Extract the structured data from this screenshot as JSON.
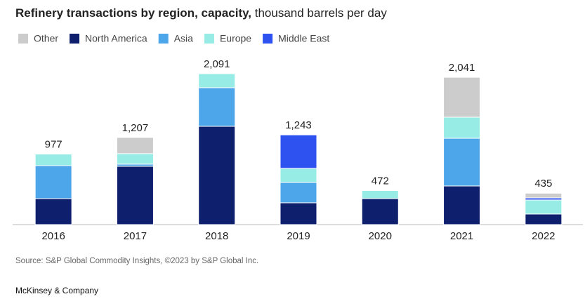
{
  "chart_data": {
    "type": "stacked_bar",
    "title": "Refinery transactions by region, capacity,",
    "subtitle": "thousand barrels per day",
    "categories": [
      "2016",
      "2017",
      "2018",
      "2019",
      "2020",
      "2021",
      "2022"
    ],
    "series": [
      {
        "name": "Other",
        "color": "#cccccc",
        "values": [
          null,
          223,
          null,
          null,
          null,
          553,
          65
        ]
      },
      {
        "name": "North America",
        "color": "#0e1f6e",
        "values": [
          360,
          808,
          1362,
          302,
          360,
          535,
          146
        ]
      },
      {
        "name": "Asia",
        "color": "#4ea6ea",
        "values": [
          457,
          30,
          535,
          282,
          null,
          661,
          null
        ]
      },
      {
        "name": "Europe",
        "color": "#98ece6",
        "values": [
          160,
          146,
          194,
          195,
          112,
          292,
          195
        ]
      },
      {
        "name": "Middle East",
        "color": "#2d52f0",
        "values": [
          null,
          null,
          null,
          464,
          null,
          null,
          29
        ]
      }
    ],
    "totals": [
      977,
      1207,
      2091,
      1243,
      472,
      2041,
      435
    ],
    "value_labels": [
      "977",
      "1,207",
      "2,091",
      "1,243",
      "472",
      "2,041",
      "435"
    ],
    "ylim": [
      0,
      2300
    ],
    "source": "Source: S&P Global Commodity Insights, ©2023 by S&P Global Inc.",
    "footer": "McKinsey & Company"
  }
}
